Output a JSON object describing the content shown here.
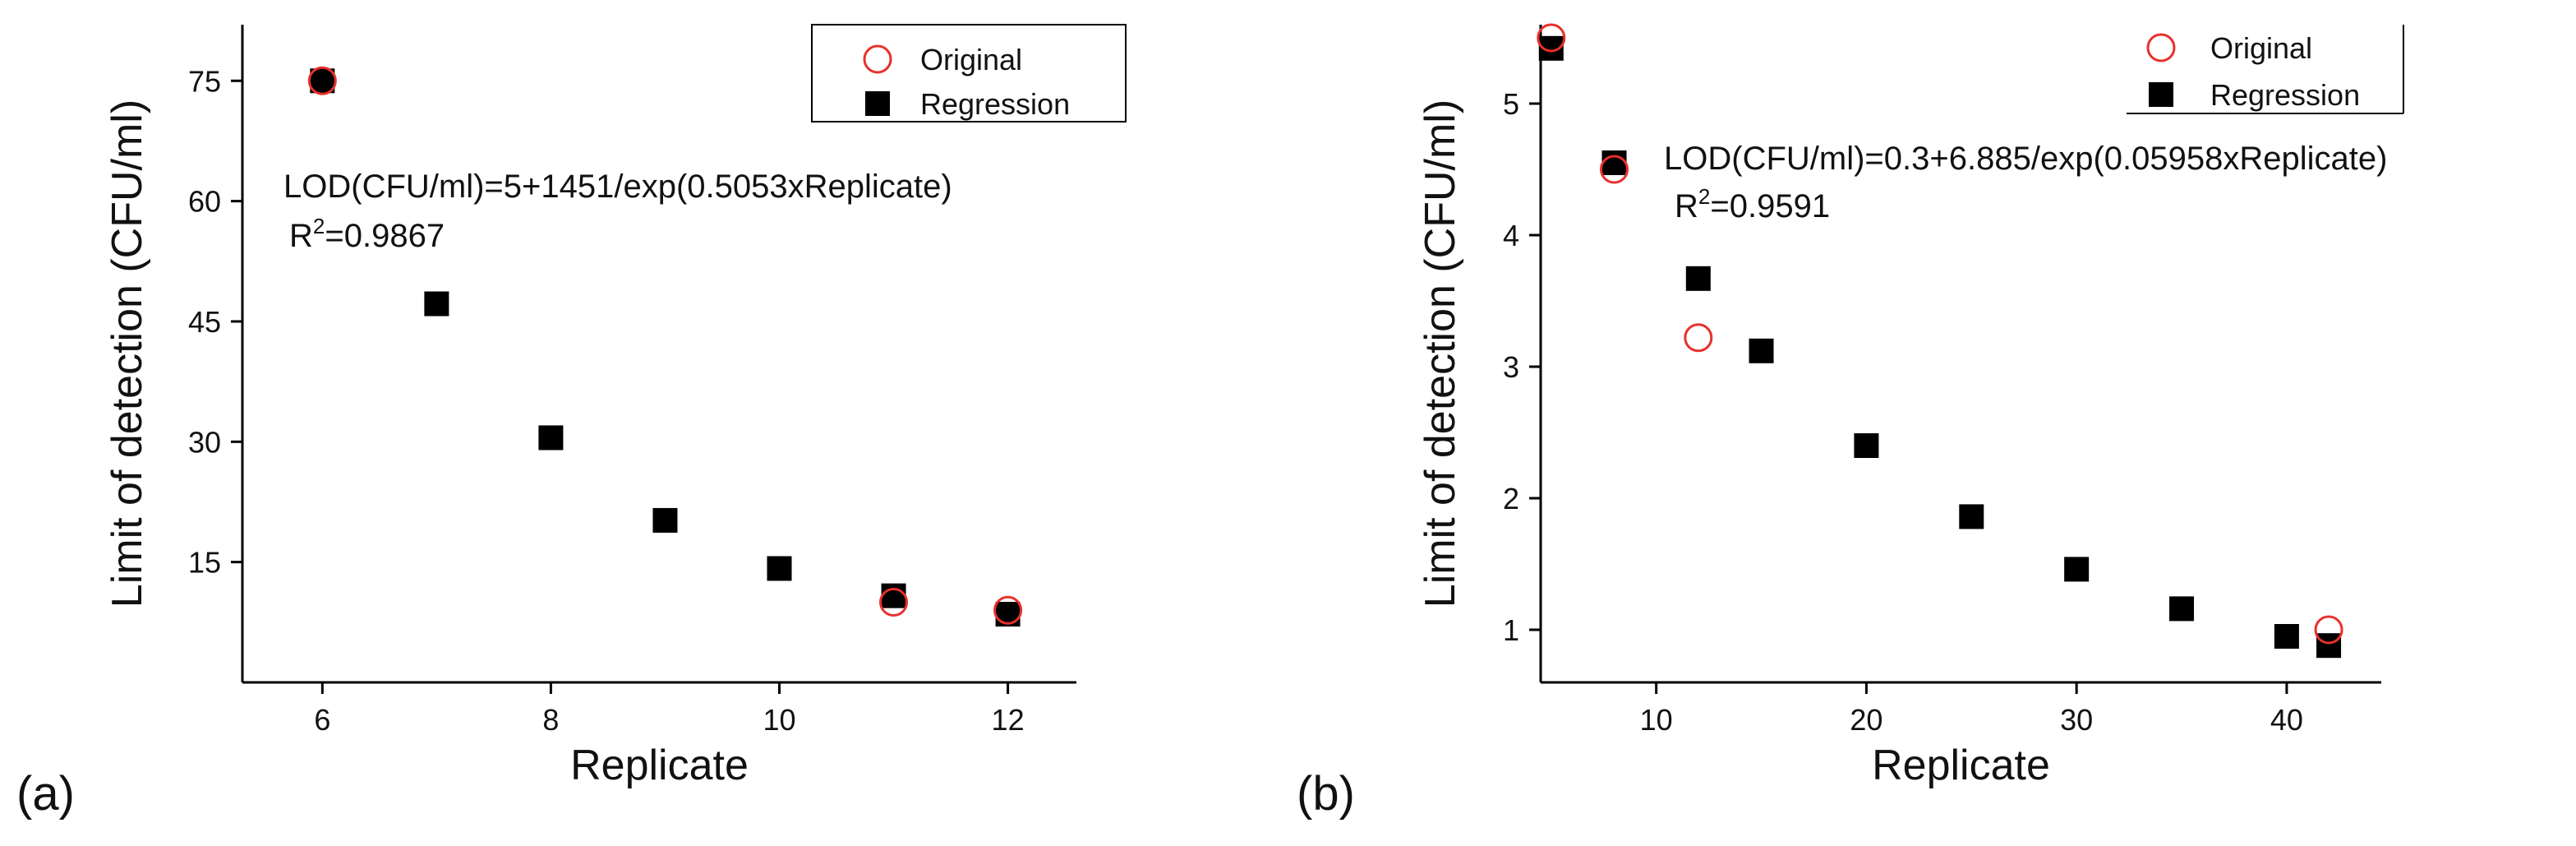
{
  "figure": {
    "panels": [
      {
        "panel_label": "(a)",
        "equation": "LOD(CFU/ml)=5+1451/exp(0.5053xReplicate)",
        "r2_prefix": "R",
        "r2_sup": "2",
        "r2_value": "=0.9867"
      },
      {
        "panel_label": "(b)",
        "equation": "LOD(CFU/ml)=0.3+6.885/exp(0.05958xReplicate)",
        "r2_prefix": "R",
        "r2_sup": "2",
        "r2_value": "=0.9591"
      }
    ]
  },
  "colors": {
    "original": "#e8302b",
    "regression": "#000000",
    "axis": "#000000"
  },
  "chart_data": [
    {
      "type": "scatter",
      "title": "",
      "xlabel": "Replicate",
      "ylabel": "Limit of detection (CFU/ml)",
      "xlim": [
        5.3,
        12.6
      ],
      "ylim": [
        0,
        82
      ],
      "xticks": [
        6,
        8,
        10,
        12
      ],
      "yticks": [
        15,
        30,
        45,
        60,
        75
      ],
      "xtick_labels": [
        "6",
        "8",
        "10",
        "12"
      ],
      "ytick_labels": [
        "15",
        "30",
        "45",
        "60",
        "75"
      ],
      "grid": false,
      "legend_position": "top-right",
      "series": [
        {
          "name": "Original",
          "marker": "open-circle",
          "x": [
            6,
            11,
            12
          ],
          "y": [
            75,
            10,
            9
          ]
        },
        {
          "name": "Regression",
          "marker": "filled-square",
          "x": [
            6,
            7,
            8,
            9,
            10,
            11,
            12
          ],
          "y": [
            75,
            47.2,
            30.5,
            20.2,
            14.2,
            10.8,
            8.5
          ]
        }
      ]
    },
    {
      "type": "scatter",
      "title": "",
      "xlabel": "Replicate",
      "ylabel": "Limit of detection (CFU/ml)",
      "xlim": [
        4.5,
        44.5
      ],
      "ylim": [
        0.6,
        5.6
      ],
      "xticks": [
        10,
        20,
        30,
        40
      ],
      "yticks": [
        1,
        2,
        3,
        4,
        5
      ],
      "xtick_labels": [
        "10",
        "20",
        "30",
        "40"
      ],
      "ytick_labels": [
        "1",
        "2",
        "3",
        "4",
        "5"
      ],
      "grid": false,
      "legend_position": "top-right",
      "series": [
        {
          "name": "Original",
          "marker": "open-circle",
          "x": [
            5,
            8,
            12,
            42
          ],
          "y": [
            5.5,
            4.5,
            3.22,
            1.0
          ]
        },
        {
          "name": "Regression",
          "marker": "filled-square",
          "x": [
            5,
            8,
            12,
            15,
            20,
            25,
            30,
            35,
            40,
            42
          ],
          "y": [
            5.42,
            4.55,
            3.67,
            3.12,
            2.4,
            1.86,
            1.46,
            1.16,
            0.95,
            0.88
          ]
        }
      ]
    }
  ]
}
